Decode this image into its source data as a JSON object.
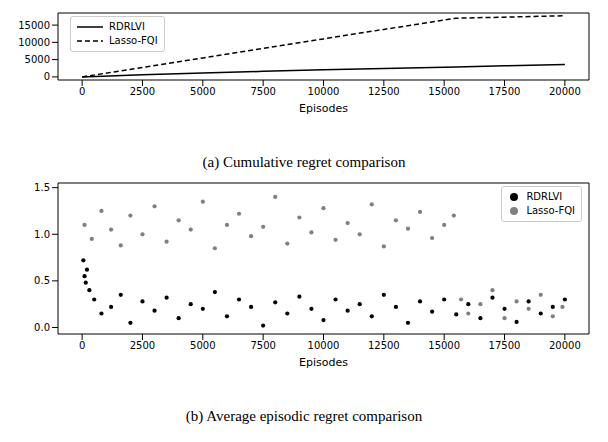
{
  "chart_data": [
    {
      "type": "line",
      "title": "(a) Cumulative regret comparison",
      "x_label": "Episodes",
      "xlim": [
        -1000,
        21000
      ],
      "xticks": [
        0,
        2500,
        5000,
        7500,
        10000,
        12500,
        15000,
        17500,
        20000
      ],
      "ylim": [
        -900,
        18500
      ],
      "yticks": [
        0,
        5000,
        10000,
        15000
      ],
      "grid": false,
      "legend": "upper left",
      "x": [
        0,
        2500,
        5000,
        7500,
        10000,
        12500,
        15500,
        17500,
        20000
      ],
      "series": [
        {
          "name": "RDRLVI",
          "color": "#000000",
          "line_style": "solid",
          "values": [
            0,
            600,
            1100,
            1600,
            2050,
            2450,
            2900,
            3200,
            3600
          ]
        },
        {
          "name": "Lasso-FQI",
          "color": "#000000",
          "line_style": "dashed",
          "values": [
            0,
            2750,
            5500,
            8250,
            11000,
            13750,
            17000,
            17300,
            17700
          ]
        }
      ]
    },
    {
      "type": "scatter",
      "title": "(b) Average episodic regret comparison",
      "x_label": "Episodes",
      "xlim": [
        -1000,
        21000
      ],
      "xticks": [
        0,
        2500,
        5000,
        7500,
        10000,
        12500,
        15000,
        17500,
        20000
      ],
      "ylim": [
        -0.07,
        1.55
      ],
      "yticks": [
        {
          "value": 0,
          "label": "0.0"
        },
        {
          "value": 0.5,
          "label": "0.5"
        },
        {
          "value": 1,
          "label": "1.0"
        },
        {
          "value": 1.5,
          "label": "1.5"
        }
      ],
      "grid": false,
      "legend": "upper right",
      "series": [
        {
          "name": "RDRLVI",
          "color": "#000000",
          "marker": "circle",
          "x": [
            50,
            100,
            150,
            200,
            300,
            500,
            800,
            1200,
            1600,
            2000,
            2500,
            3000,
            3500,
            4000,
            4500,
            5000,
            5500,
            6000,
            6500,
            7000,
            7500,
            8000,
            8500,
            9000,
            9500,
            10000,
            10500,
            11000,
            11500,
            12000,
            12500,
            13000,
            13500,
            14000,
            14500,
            15000,
            15500,
            16000,
            16500,
            17000,
            17500,
            18000,
            18500,
            19000,
            19500,
            20000
          ],
          "values": [
            0.72,
            0.55,
            0.48,
            0.62,
            0.4,
            0.3,
            0.15,
            0.22,
            0.35,
            0.05,
            0.28,
            0.18,
            0.32,
            0.1,
            0.25,
            0.2,
            0.38,
            0.12,
            0.3,
            0.22,
            0.02,
            0.27,
            0.15,
            0.33,
            0.2,
            0.08,
            0.3,
            0.18,
            0.25,
            0.12,
            0.35,
            0.22,
            0.05,
            0.28,
            0.17,
            0.3,
            0.14,
            0.25,
            0.1,
            0.32,
            0.2,
            0.06,
            0.28,
            0.15,
            0.22,
            0.3
          ]
        },
        {
          "name": "Lasso-FQI",
          "color": "#808080",
          "marker": "circle",
          "x": [
            100,
            400,
            800,
            1200,
            1600,
            2000,
            2500,
            3000,
            3500,
            4000,
            4500,
            5000,
            5500,
            6000,
            6500,
            7000,
            7500,
            8000,
            8500,
            9000,
            9500,
            10000,
            10500,
            11000,
            11500,
            12000,
            12500,
            13000,
            13500,
            14000,
            14500,
            15000,
            15400,
            15700,
            16000,
            16500,
            17000,
            17500,
            18000,
            18500,
            19000,
            19500,
            19900
          ],
          "values": [
            1.1,
            0.95,
            1.25,
            1.05,
            0.88,
            1.2,
            1.0,
            1.3,
            0.92,
            1.15,
            1.05,
            1.35,
            0.85,
            1.1,
            1.22,
            0.98,
            1.08,
            1.4,
            0.9,
            1.18,
            1.02,
            1.28,
            0.94,
            1.12,
            1.0,
            1.32,
            0.87,
            1.15,
            1.06,
            1.24,
            0.96,
            1.1,
            1.2,
            0.3,
            0.15,
            0.25,
            0.4,
            0.1,
            0.28,
            0.2,
            0.35,
            0.12,
            0.22
          ]
        }
      ]
    }
  ]
}
